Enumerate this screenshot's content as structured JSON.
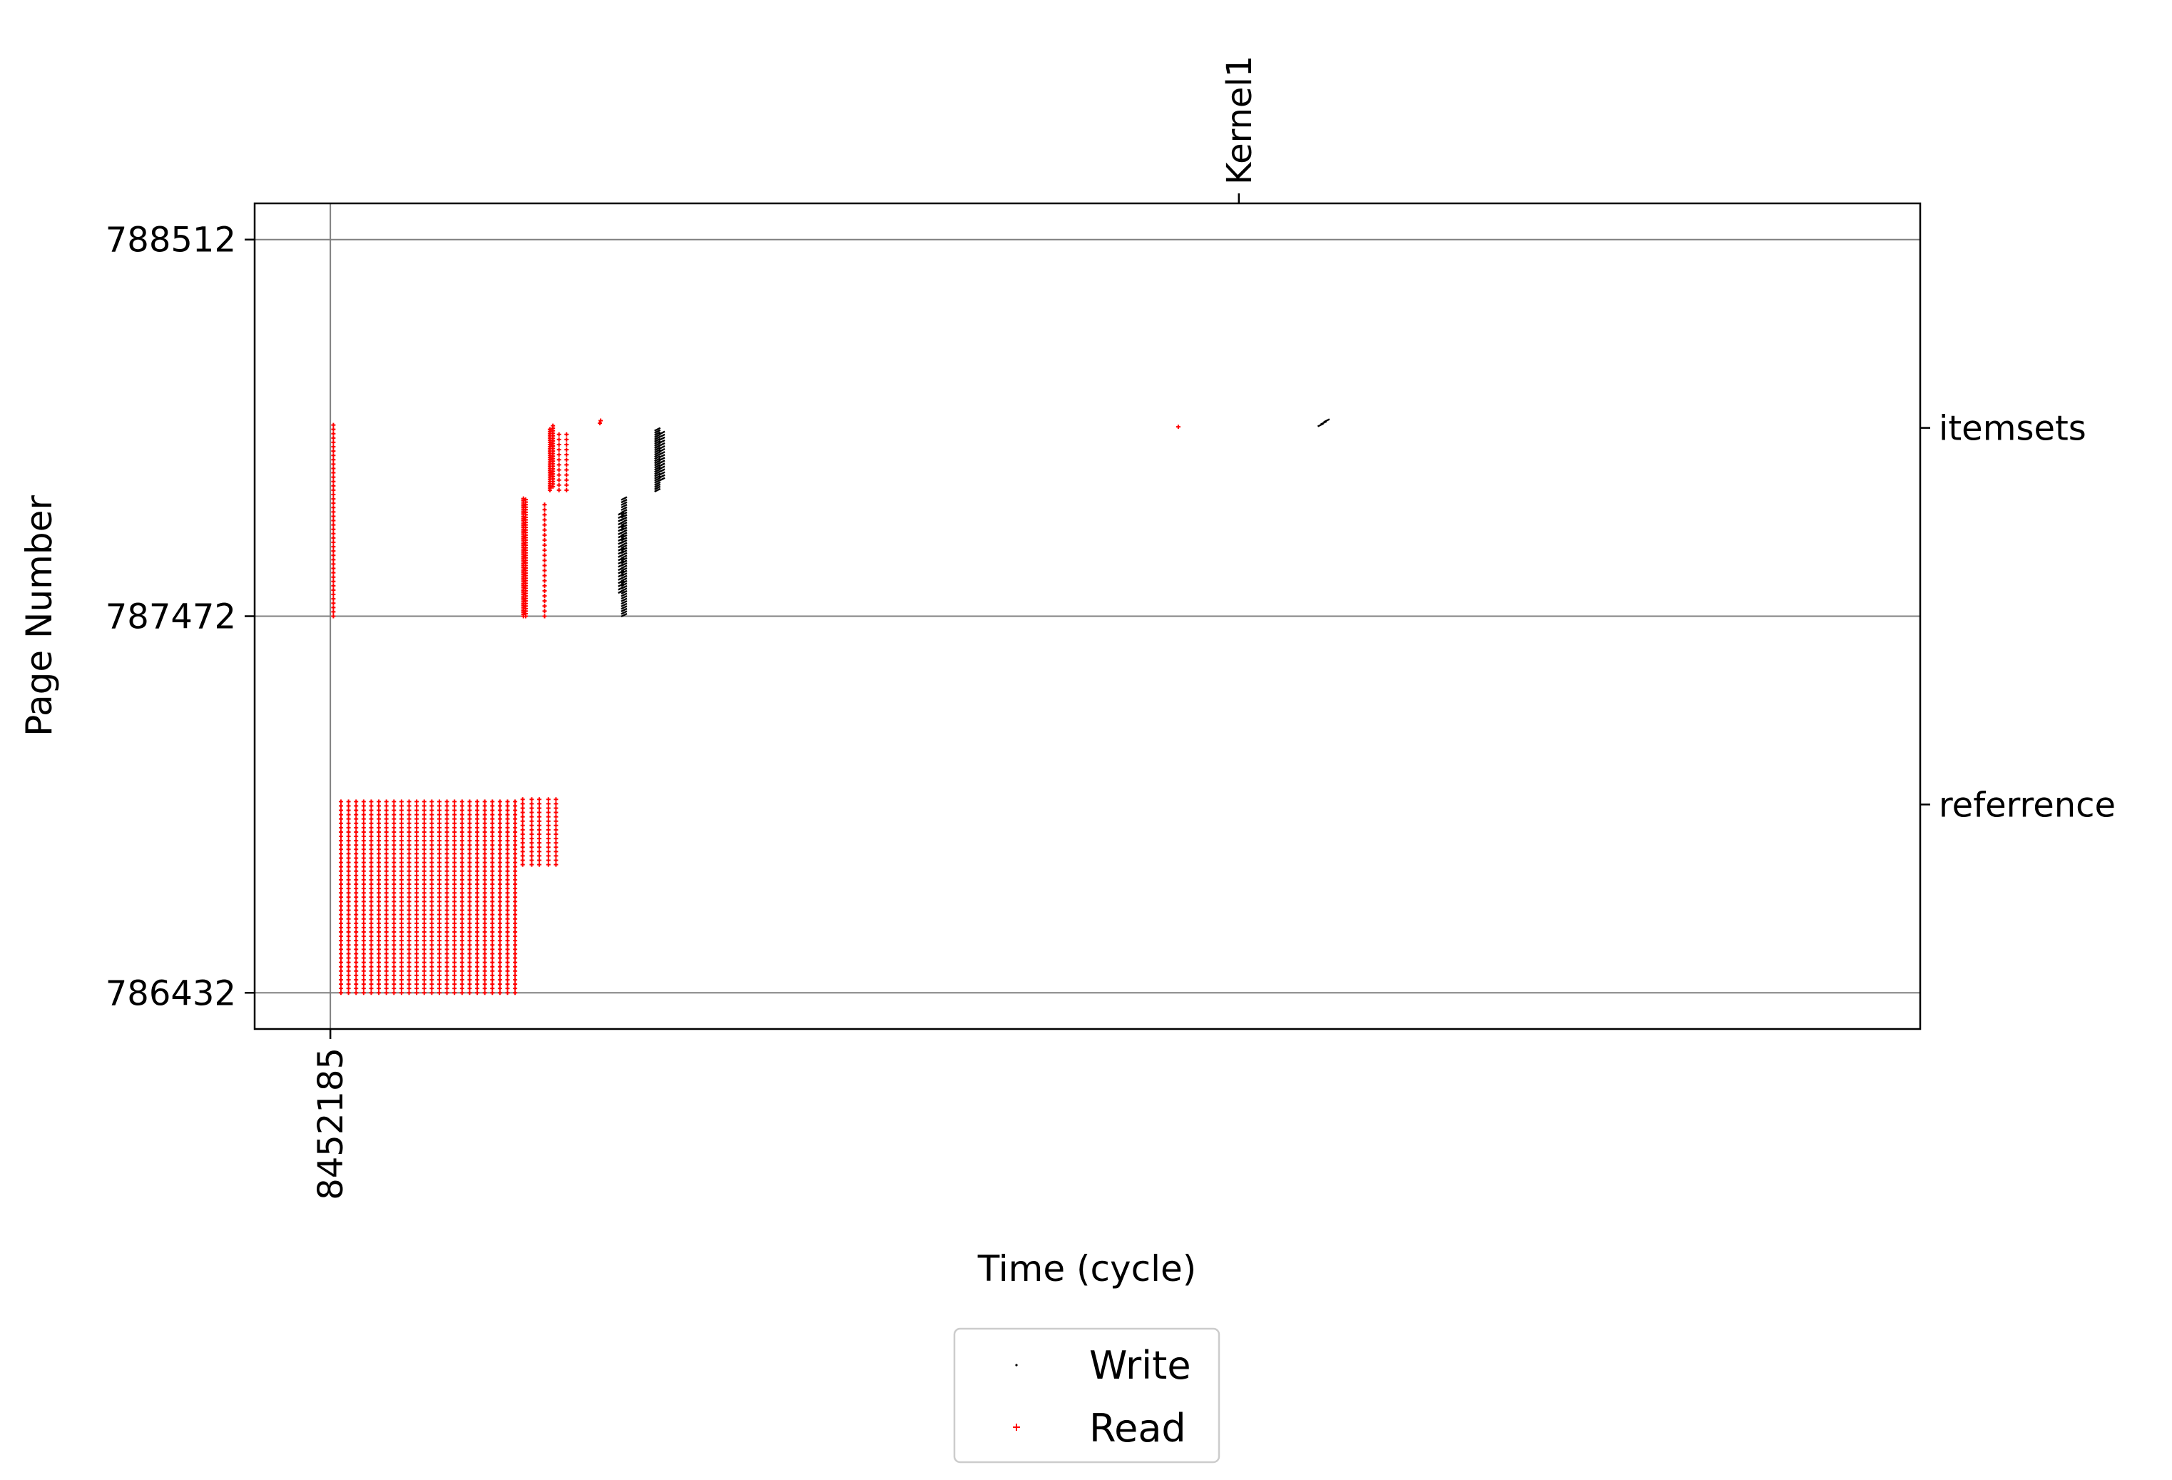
{
  "chart_data": {
    "type": "scatter",
    "title": "",
    "xlabel": "Time (cycle)",
    "ylabel": "Page Number",
    "x_ticks": [
      {
        "value": 0,
        "label": "8452185"
      }
    ],
    "y_ticks": [
      786432,
      787472,
      788512
    ],
    "y_lim": [
      786332,
      788612
    ],
    "x_lim": [
      -100,
      2100
    ],
    "top_axis": {
      "ticks": [
        {
          "value": 1200,
          "label": "Kernel1"
        }
      ]
    },
    "right_axis": {
      "ticks": [
        {
          "value": 787992,
          "label": "itemsets"
        },
        {
          "value": 786952,
          "label": "referrence"
        }
      ]
    },
    "grid": true,
    "legend": {
      "placement": "below",
      "entries": [
        {
          "name": "Write",
          "color": "#000000",
          "marker": "point"
        },
        {
          "name": "Read",
          "color": "#ff0000",
          "marker": "plus"
        }
      ]
    },
    "series": [
      {
        "name": "Read",
        "color": "#ff0000",
        "columns": [
          {
            "x": 4,
            "y_start": 787472,
            "y_end": 788000,
            "step": 12
          },
          {
            "x": 14,
            "y_start": 786432,
            "y_end": 786970,
            "step": 12
          },
          {
            "x": 24,
            "y_start": 786432,
            "y_end": 786970,
            "step": 12
          },
          {
            "x": 34,
            "y_start": 786432,
            "y_end": 786970,
            "step": 12
          },
          {
            "x": 44,
            "y_start": 786432,
            "y_end": 786970,
            "step": 12
          },
          {
            "x": 54,
            "y_start": 786432,
            "y_end": 786970,
            "step": 12
          },
          {
            "x": 64,
            "y_start": 786432,
            "y_end": 786970,
            "step": 12
          },
          {
            "x": 74,
            "y_start": 786432,
            "y_end": 786970,
            "step": 12
          },
          {
            "x": 84,
            "y_start": 786432,
            "y_end": 786970,
            "step": 12
          },
          {
            "x": 94,
            "y_start": 786432,
            "y_end": 786970,
            "step": 12
          },
          {
            "x": 104,
            "y_start": 786432,
            "y_end": 786970,
            "step": 12
          },
          {
            "x": 114,
            "y_start": 786432,
            "y_end": 786970,
            "step": 12
          },
          {
            "x": 124,
            "y_start": 786432,
            "y_end": 786970,
            "step": 12
          },
          {
            "x": 134,
            "y_start": 786432,
            "y_end": 786970,
            "step": 12
          },
          {
            "x": 144,
            "y_start": 786432,
            "y_end": 786970,
            "step": 12
          },
          {
            "x": 154,
            "y_start": 786432,
            "y_end": 786970,
            "step": 12
          },
          {
            "x": 164,
            "y_start": 786432,
            "y_end": 786970,
            "step": 12
          },
          {
            "x": 174,
            "y_start": 786432,
            "y_end": 786970,
            "step": 12
          },
          {
            "x": 184,
            "y_start": 786432,
            "y_end": 786970,
            "step": 12
          },
          {
            "x": 194,
            "y_start": 786432,
            "y_end": 786970,
            "step": 12
          },
          {
            "x": 204,
            "y_start": 786432,
            "y_end": 786970,
            "step": 12
          },
          {
            "x": 214,
            "y_start": 786432,
            "y_end": 786970,
            "step": 12
          },
          {
            "x": 224,
            "y_start": 786432,
            "y_end": 786970,
            "step": 12
          },
          {
            "x": 234,
            "y_start": 786432,
            "y_end": 786970,
            "step": 12
          },
          {
            "x": 244,
            "y_start": 786432,
            "y_end": 786970,
            "step": 12
          },
          {
            "x": 254,
            "y_start": 786786,
            "y_end": 786970,
            "step": 12
          },
          {
            "x": 266,
            "y_start": 786786,
            "y_end": 786970,
            "step": 12
          },
          {
            "x": 276,
            "y_start": 786786,
            "y_end": 786970,
            "step": 12
          },
          {
            "x": 288,
            "y_start": 786786,
            "y_end": 786970,
            "step": 12
          },
          {
            "x": 298,
            "y_start": 786786,
            "y_end": 786970,
            "step": 12
          },
          {
            "x": 255,
            "y_start": 787472,
            "y_end": 787800,
            "step": 5
          },
          {
            "x": 258,
            "y_start": 787472,
            "y_end": 787800,
            "step": 7
          },
          {
            "x": 283,
            "y_start": 787472,
            "y_end": 787790,
            "step": 14
          },
          {
            "x": 290,
            "y_start": 787820,
            "y_end": 787990,
            "step": 6
          },
          {
            "x": 294,
            "y_start": 787830,
            "y_end": 788000,
            "step": 7
          },
          {
            "x": 302,
            "y_start": 787820,
            "y_end": 787980,
            "step": 14
          },
          {
            "x": 312,
            "y_start": 787820,
            "y_end": 787980,
            "step": 14
          }
        ],
        "points": [
          {
            "x": 356,
            "y": 788005
          },
          {
            "x": 357,
            "y": 788012
          },
          {
            "x": 1120,
            "y": 787995
          }
        ]
      },
      {
        "name": "Write",
        "color": "#000000",
        "columns": [
          {
            "x": 388,
            "y_start": 787475,
            "y_end": 787800,
            "step": 7
          },
          {
            "x": 384,
            "y_start": 787540,
            "y_end": 787760,
            "step": 9
          },
          {
            "x": 432,
            "y_start": 787820,
            "y_end": 787990,
            "step": 6
          },
          {
            "x": 438,
            "y_start": 787850,
            "y_end": 787980,
            "step": 8
          }
        ],
        "points": [
          {
            "x": 1308,
            "y": 788000
          },
          {
            "x": 1312,
            "y": 788006
          },
          {
            "x": 1316,
            "y": 788012
          }
        ]
      }
    ]
  }
}
